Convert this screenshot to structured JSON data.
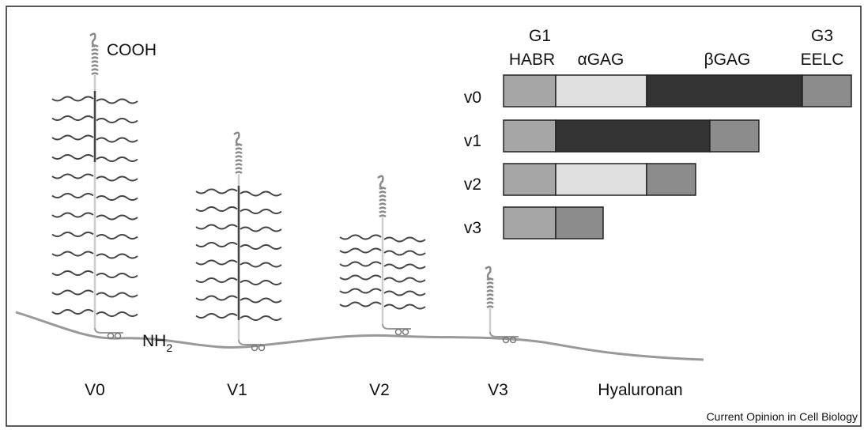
{
  "labels": {
    "cooh": "COOH",
    "nh2": "NH",
    "nh2_sub": "2",
    "hyaluronan": "Hyaluronan",
    "credit": "Current Opinion in Cell Biology"
  },
  "domains": {
    "g1": "G1",
    "habr": "HABR",
    "agag": "αGAG",
    "bgag": "βGAG",
    "g3": "G3",
    "eelc": "EELC"
  },
  "rows": [
    "v0",
    "v1",
    "v2",
    "v3"
  ],
  "variants": [
    "V0",
    "V1",
    "V2",
    "V3"
  ]
}
